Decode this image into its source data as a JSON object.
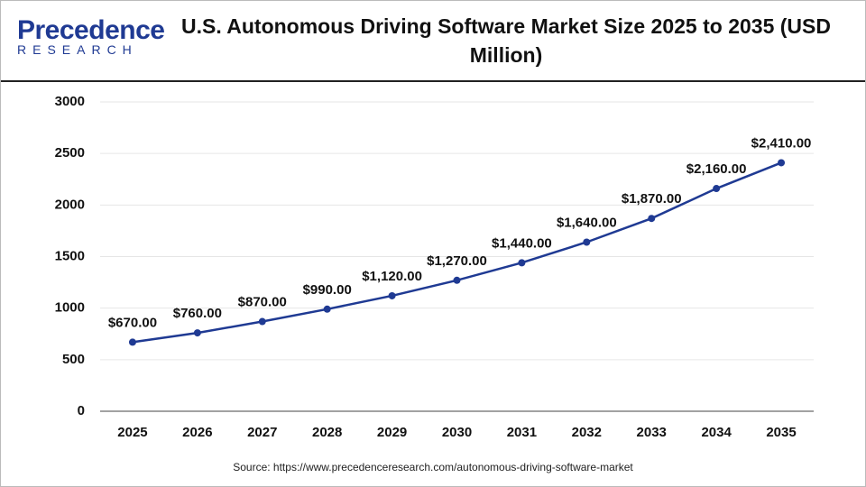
{
  "logo": {
    "name": "Precedence",
    "tagline": "RESEARCH"
  },
  "chart_data": {
    "type": "line",
    "title": "U.S. Autonomous Driving Software Market Size 2025 to 2035 (USD Million)",
    "categories": [
      "2025",
      "2026",
      "2027",
      "2028",
      "2029",
      "2030",
      "2031",
      "2032",
      "2033",
      "2034",
      "2035"
    ],
    "values": [
      670,
      760,
      870,
      990,
      1120,
      1270,
      1440,
      1640,
      1870,
      2160,
      2410
    ],
    "value_labels": [
      "$670.00",
      "$760.00",
      "$870.00",
      "$990.00",
      "$1,120.00",
      "$1,270.00",
      "$1,440.00",
      "$1,640.00",
      "$1,870.00",
      "$2,160.00",
      "$2,410.00"
    ],
    "color": "#1f3a93",
    "ylim": [
      0,
      3000
    ],
    "yticks": [
      0,
      500,
      1000,
      1500,
      2000,
      2500,
      3000
    ],
    "grid": true,
    "source": "Source: https://www.precedenceresearch.com/autonomous-driving-software-market"
  }
}
